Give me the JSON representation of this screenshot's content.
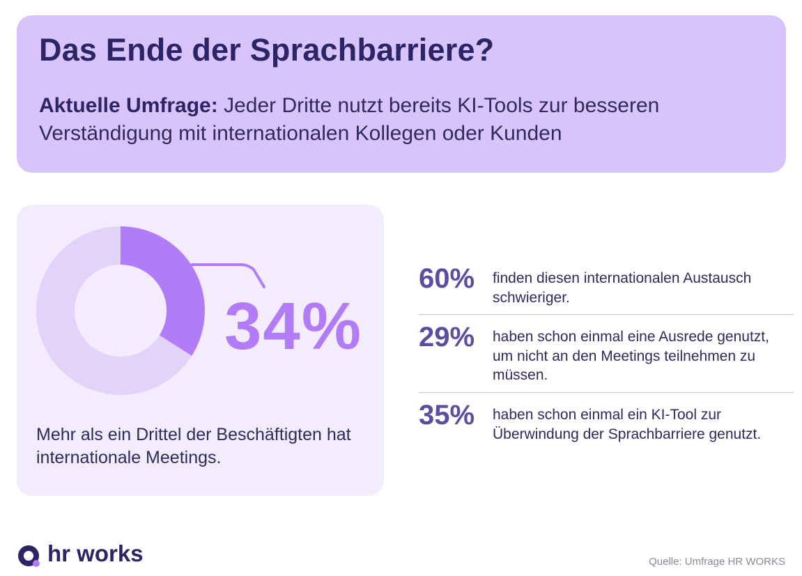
{
  "header": {
    "title": "Das Ende der Sprachbarriere?",
    "subtitle_lead": "Aktuelle Umfrage:",
    "subtitle_text": "Jeder Dritte nutzt bereits KI-Tools zur besseren Verständigung mit internationalen Kollegen oder Kunden"
  },
  "colors": {
    "header_bg": "#d8c3fb",
    "card_bg": "#f3ecfd",
    "donut_highlight": "#b27cf8",
    "donut_rest": "#e3d3fb",
    "stat_number": "#5b4d9f",
    "brand_dark": "#2b2467"
  },
  "chart_data": {
    "type": "pie",
    "variant": "donut",
    "value_label": "34%",
    "slices": [
      {
        "value": 34,
        "highlight": true
      },
      {
        "value": 66,
        "highlight": false
      }
    ],
    "caption": "Mehr als ein Drittel der Beschäftigten hat internationale Meetings."
  },
  "stats": [
    {
      "value": "60%",
      "text": "finden diesen internationalen Austausch schwieriger."
    },
    {
      "value": "29%",
      "text": "haben schon einmal eine Ausrede genutzt, um nicht an den Meetings teilnehmen zu müssen."
    },
    {
      "value": "35%",
      "text": "haben schon einmal ein KI-Tool zur Überwindung der Sprachbarriere genutzt."
    }
  ],
  "footer": {
    "brand": "hr works",
    "source": "Quelle: Umfrage HR WORKS"
  }
}
